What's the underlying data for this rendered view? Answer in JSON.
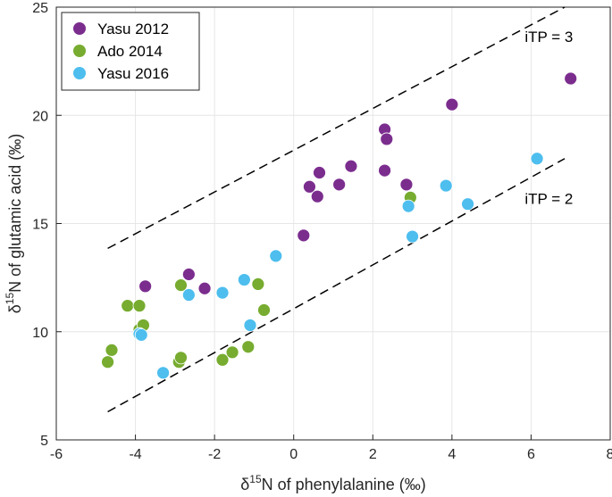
{
  "chart_data": {
    "type": "scatter",
    "title": "",
    "xlabel_prefix": "δ",
    "xlabel_sup": "15",
    "xlabel_rest": "N of phenylalanine (‰)",
    "ylabel_prefix": "δ",
    "ylabel_sup": "15",
    "ylabel_rest": "N of glutamic acid (‰)",
    "xlim": [
      -6,
      8
    ],
    "ylim": [
      5,
      25
    ],
    "xticks": [
      -6,
      -4,
      -2,
      0,
      2,
      4,
      6,
      8
    ],
    "yticks": [
      5,
      10,
      15,
      20,
      25
    ],
    "xtick_labels": [
      "-6",
      "-4",
      "-2",
      "0",
      "2",
      "4",
      "6",
      "8"
    ],
    "ytick_labels": [
      "5",
      "10",
      "15",
      "20",
      "25"
    ],
    "grid": true,
    "legend_position": "top-left",
    "series": [
      {
        "name": "Yasu 2012",
        "color": "#7B2D8E",
        "points": [
          {
            "x": -3.75,
            "y": 12.1
          },
          {
            "x": -2.65,
            "y": 12.65
          },
          {
            "x": -2.25,
            "y": 12.0
          },
          {
            "x": 0.25,
            "y": 14.45
          },
          {
            "x": 0.4,
            "y": 16.7
          },
          {
            "x": 0.6,
            "y": 16.25
          },
          {
            "x": 0.65,
            "y": 17.35
          },
          {
            "x": 1.15,
            "y": 16.8
          },
          {
            "x": 1.45,
            "y": 17.65
          },
          {
            "x": 2.3,
            "y": 17.45
          },
          {
            "x": 2.3,
            "y": 19.35
          },
          {
            "x": 2.35,
            "y": 18.9
          },
          {
            "x": 2.85,
            "y": 16.8
          },
          {
            "x": 4.0,
            "y": 20.5
          },
          {
            "x": 7.0,
            "y": 21.7
          }
        ]
      },
      {
        "name": "Ado 2014",
        "color": "#77AC30",
        "points": [
          {
            "x": -4.7,
            "y": 8.6
          },
          {
            "x": -4.6,
            "y": 9.15
          },
          {
            "x": -4.2,
            "y": 11.2
          },
          {
            "x": -3.9,
            "y": 11.2
          },
          {
            "x": -3.9,
            "y": 10.1
          },
          {
            "x": -3.8,
            "y": 10.3
          },
          {
            "x": -2.9,
            "y": 8.6
          },
          {
            "x": -2.85,
            "y": 8.8
          },
          {
            "x": -2.85,
            "y": 12.15
          },
          {
            "x": -1.8,
            "y": 8.7
          },
          {
            "x": -1.55,
            "y": 9.05
          },
          {
            "x": -1.15,
            "y": 9.3
          },
          {
            "x": -0.9,
            "y": 12.2
          },
          {
            "x": -0.75,
            "y": 11.0
          },
          {
            "x": 2.95,
            "y": 16.2
          }
        ]
      },
      {
        "name": "Yasu 2016",
        "color": "#4DBEEE",
        "points": [
          {
            "x": -3.9,
            "y": 9.9
          },
          {
            "x": -3.85,
            "y": 9.85
          },
          {
            "x": -3.3,
            "y": 8.1
          },
          {
            "x": -2.65,
            "y": 11.7
          },
          {
            "x": -1.8,
            "y": 11.8
          },
          {
            "x": -1.25,
            "y": 12.4
          },
          {
            "x": -1.1,
            "y": 10.3
          },
          {
            "x": -0.45,
            "y": 13.5
          },
          {
            "x": 2.9,
            "y": 15.8
          },
          {
            "x": 3.0,
            "y": 14.4
          },
          {
            "x": 3.85,
            "y": 16.75
          },
          {
            "x": 4.4,
            "y": 15.9
          },
          {
            "x": 6.15,
            "y": 18.0
          }
        ]
      }
    ],
    "reference_lines": [
      {
        "name": "iTP = 3",
        "label": "iTP = 3",
        "x": [
          -4.7,
          6.85
        ],
        "y": [
          13.85,
          25.0
        ],
        "style": "dashed"
      },
      {
        "name": "iTP = 2",
        "label": "iTP = 2",
        "x": [
          -4.7,
          6.85
        ],
        "y": [
          6.3,
          18.0
        ],
        "style": "dashed"
      }
    ],
    "annotations": [
      {
        "text": "iTP = 3",
        "x": 6.45,
        "y": 23.4
      },
      {
        "text": "iTP = 2",
        "x": 6.45,
        "y": 15.9
      }
    ]
  }
}
